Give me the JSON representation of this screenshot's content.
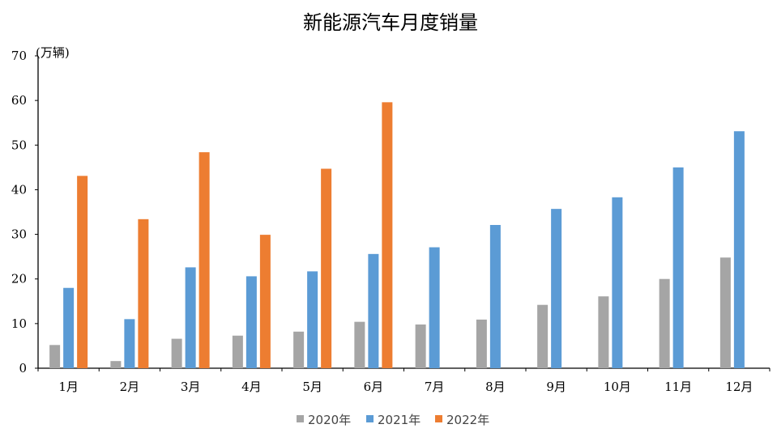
{
  "chart_data": {
    "type": "bar",
    "title": "新能源汽车月度销量",
    "ylabel": "(万辆)",
    "ylim": [
      0,
      70
    ],
    "yticks": [
      0,
      10,
      20,
      30,
      40,
      50,
      60,
      70
    ],
    "categories": [
      "1月",
      "2月",
      "3月",
      "4月",
      "5月",
      "6月",
      "7月",
      "8月",
      "9月",
      "10月",
      "11月",
      "12月"
    ],
    "series": [
      {
        "name": "2020年",
        "color": "#A5A5A5",
        "values": [
          5.2,
          1.6,
          6.6,
          7.3,
          8.2,
          10.4,
          9.8,
          10.9,
          14.2,
          16.1,
          20.0,
          24.8
        ]
      },
      {
        "name": "2021年",
        "color": "#5B9BD5",
        "values": [
          18.0,
          11.0,
          22.6,
          20.6,
          21.7,
          25.6,
          27.1,
          32.1,
          35.7,
          38.3,
          45.0,
          53.1
        ]
      },
      {
        "name": "2022年",
        "color": "#ED7D31",
        "values": [
          43.1,
          33.4,
          48.4,
          29.9,
          44.7,
          59.6,
          null,
          null,
          null,
          null,
          null,
          null
        ]
      }
    ],
    "grid": false,
    "legend_position": "bottom"
  }
}
